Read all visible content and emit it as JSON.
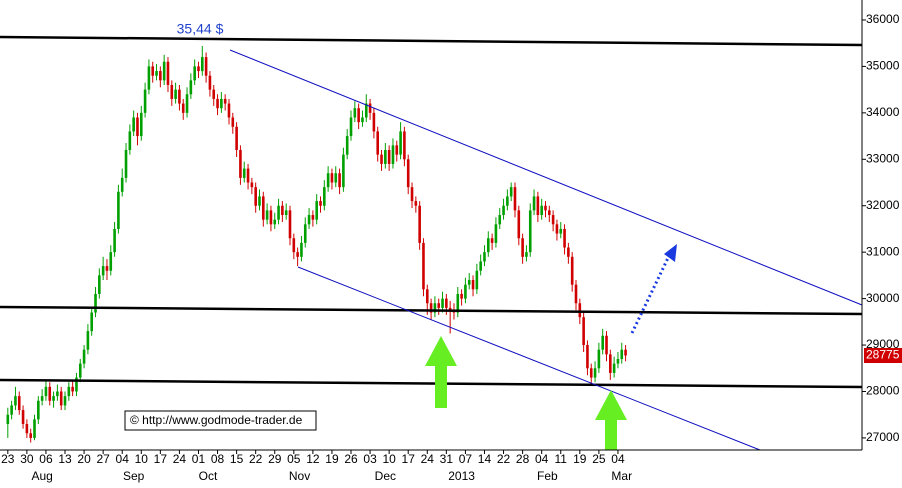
{
  "chart_data": {
    "type": "candlestick",
    "high_label": "35,44 $",
    "copyright": "© http://www.godmode-trader.de",
    "last_price": 28775,
    "up_color": "#00a000",
    "down_color": "#d00000",
    "xlim": [
      -1,
      224
    ],
    "ylim": [
      26740,
      36430
    ],
    "yticks": [
      27000,
      28000,
      29000,
      30000,
      31000,
      32000,
      33000,
      34000,
      35000,
      36000
    ],
    "xticks": [
      {
        "value": 0,
        "label": "23"
      },
      {
        "value": 5,
        "label": "30"
      },
      {
        "value": 10,
        "label": "06"
      },
      {
        "value": 15,
        "label": "13"
      },
      {
        "value": 20,
        "label": "20"
      },
      {
        "value": 25,
        "label": "27"
      },
      {
        "value": 30,
        "label": "04"
      },
      {
        "value": 35,
        "label": "10"
      },
      {
        "value": 40,
        "label": "17"
      },
      {
        "value": 45,
        "label": "24"
      },
      {
        "value": 50,
        "label": "01"
      },
      {
        "value": 55,
        "label": "08"
      },
      {
        "value": 60,
        "label": "15"
      },
      {
        "value": 65,
        "label": "22"
      },
      {
        "value": 70,
        "label": "29"
      },
      {
        "value": 75,
        "label": "05"
      },
      {
        "value": 80,
        "label": "12"
      },
      {
        "value": 85,
        "label": "19"
      },
      {
        "value": 90,
        "label": "26"
      },
      {
        "value": 95,
        "label": "03"
      },
      {
        "value": 100,
        "label": "10"
      },
      {
        "value": 105,
        "label": "17"
      },
      {
        "value": 110,
        "label": "24"
      },
      {
        "value": 115,
        "label": "31"
      },
      {
        "value": 120,
        "label": "07"
      },
      {
        "value": 125,
        "label": "14"
      },
      {
        "value": 130,
        "label": "22"
      },
      {
        "value": 135,
        "label": "28"
      },
      {
        "value": 140,
        "label": "04"
      },
      {
        "value": 145,
        "label": "11"
      },
      {
        "value": 150,
        "label": "19"
      },
      {
        "value": 155,
        "label": "25"
      },
      {
        "value": 160,
        "label": "04"
      }
    ],
    "month_labels": [
      {
        "value": 9,
        "label": "Aug"
      },
      {
        "value": 33,
        "label": "Sep"
      },
      {
        "value": 52.5,
        "label": "Oct"
      },
      {
        "value": 76.5,
        "label": "Nov"
      },
      {
        "value": 99,
        "label": "Dec"
      },
      {
        "value": 119,
        "label": "2013"
      },
      {
        "value": 141.5,
        "label": "Feb"
      },
      {
        "value": 161,
        "label": "Mar"
      }
    ],
    "candles": [
      [
        27300,
        27650,
        27000,
        27500
      ],
      [
        27500,
        27800,
        27400,
        27700
      ],
      [
        27700,
        28100,
        27600,
        27900
      ],
      [
        27900,
        28000,
        27500,
        27600
      ],
      [
        27600,
        27700,
        27200,
        27300
      ],
      [
        27300,
        27400,
        27000,
        27100
      ],
      [
        27100,
        27200,
        26900,
        27000
      ],
      [
        27000,
        27500,
        26950,
        27400
      ],
      [
        27400,
        27900,
        27300,
        27800
      ],
      [
        27800,
        28050,
        27700,
        27900
      ],
      [
        27900,
        28250,
        27800,
        28100
      ],
      [
        28100,
        28200,
        27700,
        27800
      ],
      [
        27800,
        28000,
        27650,
        27900
      ],
      [
        27900,
        28150,
        27800,
        28000
      ],
      [
        28000,
        28100,
        27600,
        27700
      ],
      [
        27700,
        28000,
        27600,
        27900
      ],
      [
        27900,
        28200,
        27800,
        28100
      ],
      [
        28100,
        28250,
        27900,
        28000
      ],
      [
        28000,
        28400,
        27900,
        28300
      ],
      [
        28300,
        28700,
        28200,
        28600
      ],
      [
        28600,
        29000,
        28500,
        28900
      ],
      [
        28900,
        29450,
        28800,
        29300
      ],
      [
        29300,
        29800,
        29200,
        29700
      ],
      [
        29700,
        30250,
        29600,
        30100
      ],
      [
        30100,
        30650,
        30000,
        30500
      ],
      [
        30500,
        30900,
        30400,
        30700
      ],
      [
        30700,
        30850,
        30400,
        30600
      ],
      [
        30600,
        31150,
        30500,
        31000
      ],
      [
        31000,
        31650,
        30900,
        31500
      ],
      [
        31500,
        32450,
        31400,
        32300
      ],
      [
        32300,
        32800,
        32200,
        32600
      ],
      [
        32600,
        33350,
        32500,
        33200
      ],
      [
        33200,
        33750,
        33100,
        33600
      ],
      [
        33600,
        34050,
        33500,
        33900
      ],
      [
        33900,
        34000,
        33300,
        33500
      ],
      [
        33500,
        34150,
        33400,
        34000
      ],
      [
        34000,
        34650,
        33900,
        34500
      ],
      [
        34500,
        35150,
        34400,
        35000
      ],
      [
        35000,
        35100,
        34650,
        34800
      ],
      [
        34800,
        35050,
        34700,
        34900
      ],
      [
        34900,
        35000,
        34550,
        34700
      ],
      [
        34700,
        35250,
        34600,
        35100
      ],
      [
        35100,
        35200,
        34450,
        34600
      ],
      [
        34600,
        34700,
        34150,
        34300
      ],
      [
        34300,
        34650,
        34200,
        34500
      ],
      [
        34500,
        34600,
        34050,
        34200
      ],
      [
        34200,
        34300,
        33850,
        34000
      ],
      [
        34000,
        34550,
        33900,
        34400
      ],
      [
        34400,
        34850,
        34300,
        34700
      ],
      [
        34700,
        35150,
        34600,
        35000
      ],
      [
        35000,
        35100,
        34750,
        34900
      ],
      [
        34900,
        35440,
        34800,
        35200
      ],
      [
        35200,
        35300,
        34650,
        34800
      ],
      [
        34800,
        34900,
        34350,
        34500
      ],
      [
        34500,
        34600,
        34150,
        34300
      ],
      [
        34300,
        34400,
        33950,
        34100
      ],
      [
        34100,
        34450,
        34000,
        34300
      ],
      [
        34300,
        34400,
        34050,
        34200
      ],
      [
        34200,
        34300,
        33750,
        33900
      ],
      [
        33900,
        34000,
        33550,
        33700
      ],
      [
        33700,
        33800,
        33050,
        33200
      ],
      [
        33200,
        33300,
        32450,
        32600
      ],
      [
        32600,
        32950,
        32500,
        32800
      ],
      [
        32800,
        32900,
        32350,
        32500
      ],
      [
        32500,
        32600,
        32250,
        32400
      ],
      [
        32400,
        32500,
        31850,
        32000
      ],
      [
        32000,
        32350,
        31900,
        32200
      ],
      [
        32200,
        32300,
        31550,
        31700
      ],
      [
        31700,
        32050,
        31600,
        31900
      ],
      [
        31900,
        32000,
        31450,
        31600
      ],
      [
        31600,
        31850,
        31500,
        31700
      ],
      [
        31700,
        32150,
        31600,
        32000
      ],
      [
        32000,
        32100,
        31650,
        31800
      ],
      [
        31800,
        32050,
        31700,
        31900
      ],
      [
        31900,
        32000,
        31150,
        31300
      ],
      [
        31300,
        31400,
        30850,
        31000
      ],
      [
        31000,
        31100,
        30700,
        30900
      ],
      [
        30900,
        31350,
        30800,
        31200
      ],
      [
        31200,
        31750,
        31100,
        31600
      ],
      [
        31600,
        31950,
        31500,
        31800
      ],
      [
        31800,
        31900,
        31550,
        31700
      ],
      [
        31700,
        32250,
        31600,
        32100
      ],
      [
        32100,
        32200,
        31850,
        32000
      ],
      [
        32000,
        32550,
        31900,
        32400
      ],
      [
        32400,
        32850,
        32300,
        32700
      ],
      [
        32700,
        32800,
        32350,
        32500
      ],
      [
        32500,
        32850,
        32400,
        32700
      ],
      [
        32700,
        32800,
        32250,
        32400
      ],
      [
        32400,
        33250,
        32300,
        33100
      ],
      [
        33100,
        33650,
        33000,
        33500
      ],
      [
        33500,
        34050,
        33400,
        33900
      ],
      [
        33900,
        34250,
        33800,
        34100
      ],
      [
        34100,
        34200,
        33650,
        33800
      ],
      [
        33800,
        34050,
        33700,
        33900
      ],
      [
        33900,
        34400,
        33800,
        34200
      ],
      [
        34200,
        34300,
        33850,
        34000
      ],
      [
        34000,
        34100,
        33450,
        33600
      ],
      [
        33600,
        33700,
        32950,
        33100
      ],
      [
        33100,
        33200,
        32750,
        32900
      ],
      [
        32900,
        33350,
        32800,
        33200
      ],
      [
        33200,
        33300,
        32750,
        32900
      ],
      [
        32900,
        33450,
        32800,
        33300
      ],
      [
        33300,
        33400,
        32950,
        33100
      ],
      [
        33100,
        33800,
        33000,
        33600
      ],
      [
        33600,
        33700,
        32850,
        33000
      ],
      [
        33000,
        33100,
        32250,
        32400
      ],
      [
        32400,
        32500,
        31950,
        32100
      ],
      [
        32100,
        32200,
        31850,
        32000
      ],
      [
        32000,
        32100,
        31050,
        31200
      ],
      [
        31200,
        31300,
        30050,
        30200
      ],
      [
        30200,
        30300,
        29650,
        29900
      ],
      [
        29900,
        30000,
        29550,
        29700
      ],
      [
        29700,
        30050,
        29600,
        29900
      ],
      [
        29900,
        30000,
        29650,
        29800
      ],
      [
        29800,
        30150,
        29700,
        30000
      ],
      [
        30000,
        30100,
        29650,
        29800
      ],
      [
        29800,
        29950,
        29250,
        29750
      ],
      [
        29750,
        29900,
        29550,
        29700
      ],
      [
        29700,
        30250,
        29600,
        30100
      ],
      [
        30100,
        30200,
        29850,
        30000
      ],
      [
        30000,
        30450,
        29900,
        30300
      ],
      [
        30300,
        30550,
        30200,
        30400
      ],
      [
        30400,
        30500,
        30050,
        30200
      ],
      [
        30200,
        30750,
        30100,
        30600
      ],
      [
        30600,
        30950,
        30500,
        30800
      ],
      [
        30800,
        31150,
        30700,
        31000
      ],
      [
        31000,
        31450,
        30900,
        31300
      ],
      [
        31300,
        31400,
        31050,
        31200
      ],
      [
        31200,
        31750,
        31100,
        31600
      ],
      [
        31600,
        31950,
        31500,
        31800
      ],
      [
        31800,
        32150,
        31700,
        32000
      ],
      [
        32000,
        32350,
        31900,
        32200
      ],
      [
        32200,
        32500,
        32100,
        32400
      ],
      [
        32400,
        32500,
        31750,
        31900
      ],
      [
        31900,
        32000,
        31150,
        31300
      ],
      [
        31300,
        31400,
        30750,
        30900
      ],
      [
        30900,
        31150,
        30800,
        31000
      ],
      [
        31000,
        32050,
        30900,
        31900
      ],
      [
        31900,
        32350,
        31800,
        32200
      ],
      [
        32200,
        32300,
        31650,
        31800
      ],
      [
        31800,
        32150,
        31700,
        32000
      ],
      [
        32000,
        32100,
        31750,
        31900
      ],
      [
        31900,
        32000,
        31650,
        31800
      ],
      [
        31800,
        31900,
        31450,
        31600
      ],
      [
        31600,
        31700,
        31250,
        31400
      ],
      [
        31400,
        31650,
        31300,
        31500
      ],
      [
        31500,
        31600,
        30950,
        31100
      ],
      [
        31100,
        31200,
        30750,
        30900
      ],
      [
        30900,
        31000,
        30150,
        30300
      ],
      [
        30300,
        30400,
        29750,
        29900
      ],
      [
        29900,
        30000,
        29450,
        29600
      ],
      [
        29600,
        29700,
        28850,
        29000
      ],
      [
        29000,
        29100,
        28350,
        28500
      ],
      [
        28500,
        28600,
        28150,
        28300
      ],
      [
        28300,
        28650,
        28200,
        28500
      ],
      [
        28500,
        29050,
        28400,
        28900
      ],
      [
        28900,
        29350,
        28800,
        29200
      ],
      [
        29200,
        29300,
        28650,
        28800
      ],
      [
        28800,
        28900,
        28250,
        28400
      ],
      [
        28400,
        28750,
        28300,
        28600
      ],
      [
        28600,
        28850,
        28500,
        28700
      ],
      [
        28700,
        29050,
        28600,
        28900
      ],
      [
        28900,
        29000,
        28650,
        28775
      ]
    ]
  }
}
